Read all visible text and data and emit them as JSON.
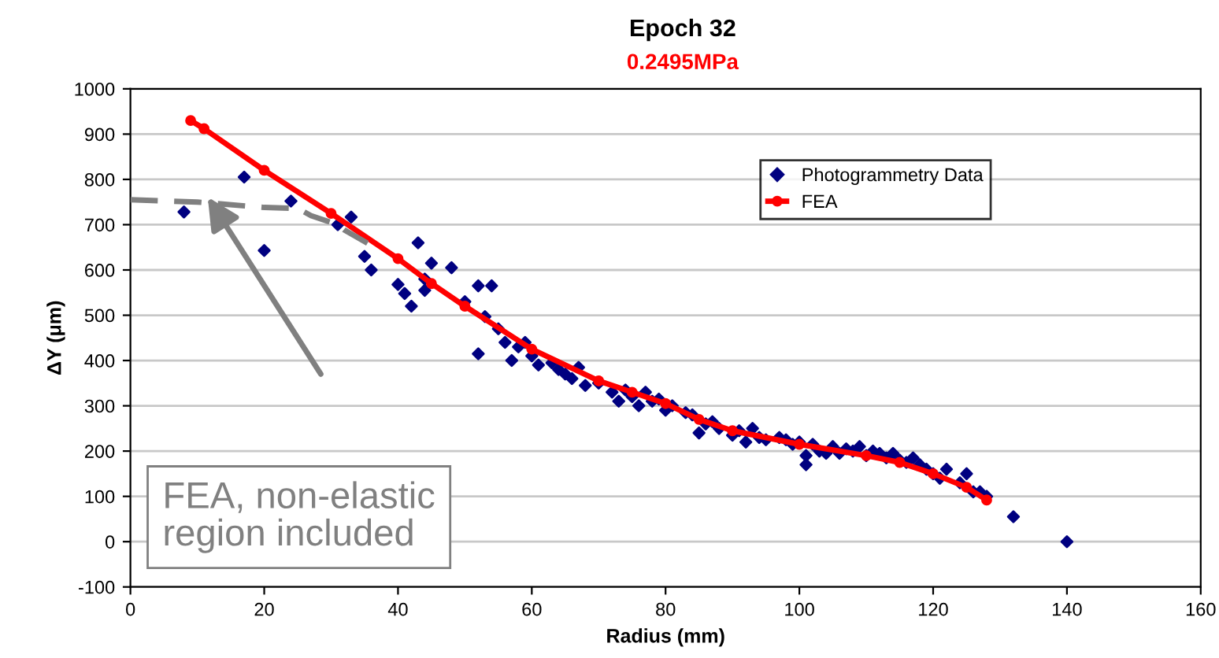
{
  "chart_data": {
    "type": "scatter",
    "title": "Epoch 32",
    "subtitle": "0.2495MPa",
    "xlabel": "Radius (mm)",
    "ylabel": "ΔY (μm)",
    "xlim": [
      0,
      160
    ],
    "xticks": [
      0,
      20,
      40,
      60,
      80,
      100,
      120,
      140,
      160
    ],
    "ylim": [
      -100,
      1000
    ],
    "yticks": [
      -100,
      0,
      100,
      200,
      300,
      400,
      500,
      600,
      700,
      800,
      900,
      1000
    ],
    "grid": "y",
    "legend": "top right",
    "annotations": [
      "FEA, non-elastic region included"
    ],
    "series": [
      {
        "name": "Photogrammetry Data",
        "marker": "diamond",
        "color": "#000080",
        "x": [
          8,
          17,
          20,
          24,
          31,
          33,
          35,
          36,
          40,
          41,
          42,
          43,
          44,
          45,
          44,
          48,
          50,
          52,
          52,
          53,
          54,
          55,
          56,
          57,
          58,
          59,
          60,
          61,
          63,
          64,
          65,
          66,
          67,
          68,
          70,
          72,
          73,
          74,
          75,
          76,
          77,
          78,
          79,
          80,
          81,
          83,
          84,
          85,
          86,
          87,
          88,
          90,
          91,
          92,
          93,
          94,
          95,
          97,
          98,
          99,
          100,
          101,
          101,
          102,
          103,
          104,
          105,
          106,
          107,
          108,
          109,
          110,
          111,
          112,
          113,
          114,
          115,
          116,
          117,
          118,
          119,
          120,
          121,
          122,
          124,
          125,
          126,
          127,
          128,
          132,
          140
        ],
        "values": [
          728,
          805,
          643,
          752,
          700,
          717,
          630,
          600,
          568,
          548,
          520,
          660,
          580,
          615,
          555,
          605,
          530,
          565,
          415,
          497,
          565,
          470,
          440,
          400,
          430,
          440,
          410,
          390,
          395,
          380,
          370,
          360,
          385,
          345,
          350,
          330,
          310,
          335,
          320,
          300,
          330,
          310,
          315,
          290,
          300,
          285,
          280,
          240,
          260,
          265,
          250,
          235,
          245,
          220,
          250,
          230,
          225,
          230,
          225,
          215,
          220,
          190,
          170,
          215,
          200,
          195,
          210,
          195,
          205,
          200,
          210,
          190,
          200,
          195,
          185,
          195,
          180,
          175,
          185,
          170,
          160,
          150,
          140,
          160,
          130,
          150,
          110,
          110,
          100,
          55,
          0
        ]
      },
      {
        "name": "FEA",
        "type": "line",
        "marker": "circle",
        "line_style": "solid",
        "color": "#ff0000",
        "x": [
          9,
          11,
          20,
          30,
          40,
          45,
          50,
          60,
          70,
          75,
          80,
          85,
          90,
          100,
          110,
          115,
          120,
          125,
          128
        ],
        "values": [
          930,
          912,
          820,
          725,
          625,
          570,
          520,
          425,
          355,
          330,
          305,
          270,
          245,
          215,
          190,
          175,
          150,
          120,
          92
        ]
      },
      {
        "type": "line",
        "marker": "none",
        "line_style": "dashed",
        "color": "#808080",
        "x": [
          0,
          10,
          20,
          25,
          27,
          31,
          32,
          36.5
        ],
        "values": [
          755,
          750,
          738,
          736,
          720,
          700,
          688,
          650
        ]
      }
    ]
  }
}
